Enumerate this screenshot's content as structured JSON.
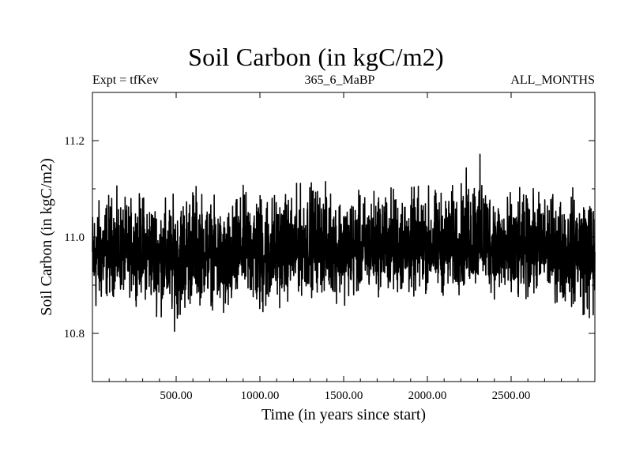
{
  "header": {
    "title": "Soil Carbon (in kgC/m2)",
    "left": "Expt = tfKev",
    "center": "365_6_MaBP",
    "right": "ALL_MONTHS"
  },
  "chart_data": {
    "type": "line",
    "title": "Soil Carbon (in kgC/m2)",
    "xlabel": "Time (in years since start)",
    "ylabel": "Soil Carbon (in kgC/m2)",
    "xlim": [
      0,
      3000
    ],
    "ylim": [
      10.7,
      11.3
    ],
    "xticks": [
      500,
      1000,
      1500,
      2000,
      2500
    ],
    "xtick_labels": [
      "500.00",
      "1000.00",
      "1500.00",
      "2000.00",
      "2500.00"
    ],
    "yticks": [
      10.8,
      11.0,
      11.2
    ],
    "ytick_labels": [
      "10.8",
      "11.0",
      "11.2"
    ],
    "grid": false,
    "series": [
      {
        "color": "#000000",
        "x": [
          0,
          100,
          200,
          300,
          400,
          500,
          600,
          700,
          800,
          900,
          1000,
          1100,
          1200,
          1300,
          1400,
          1500,
          1600,
          1700,
          1800,
          1900,
          2000,
          2100,
          2200,
          2300,
          2400,
          2500,
          2600,
          2700,
          2800,
          2900,
          3000
        ],
        "y_mean": [
          10.96,
          10.97,
          10.96,
          10.97,
          10.96,
          10.95,
          10.97,
          10.97,
          10.94,
          10.98,
          10.97,
          10.97,
          10.97,
          10.98,
          10.98,
          10.97,
          10.97,
          10.98,
          10.98,
          10.98,
          10.98,
          10.98,
          10.98,
          10.99,
          10.98,
          10.97,
          10.98,
          10.98,
          10.97,
          10.98,
          10.96
        ],
        "y_min": [
          10.77,
          10.84,
          10.85,
          10.84,
          10.8,
          10.77,
          10.82,
          10.83,
          10.76,
          10.84,
          10.76,
          10.82,
          10.84,
          10.85,
          10.84,
          10.83,
          10.84,
          10.85,
          10.84,
          10.83,
          10.85,
          10.84,
          10.85,
          10.86,
          10.84,
          10.79,
          10.83,
          10.84,
          10.82,
          10.8,
          10.75
        ],
        "y_max": [
          11.11,
          11.14,
          11.12,
          11.14,
          11.12,
          11.13,
          11.17,
          11.12,
          11.1,
          11.14,
          11.15,
          11.14,
          11.14,
          11.17,
          11.15,
          11.14,
          11.13,
          11.15,
          11.15,
          11.14,
          11.15,
          11.14,
          11.16,
          11.23,
          11.14,
          11.13,
          11.13,
          11.14,
          11.13,
          11.14,
          11.14
        ]
      }
    ]
  }
}
